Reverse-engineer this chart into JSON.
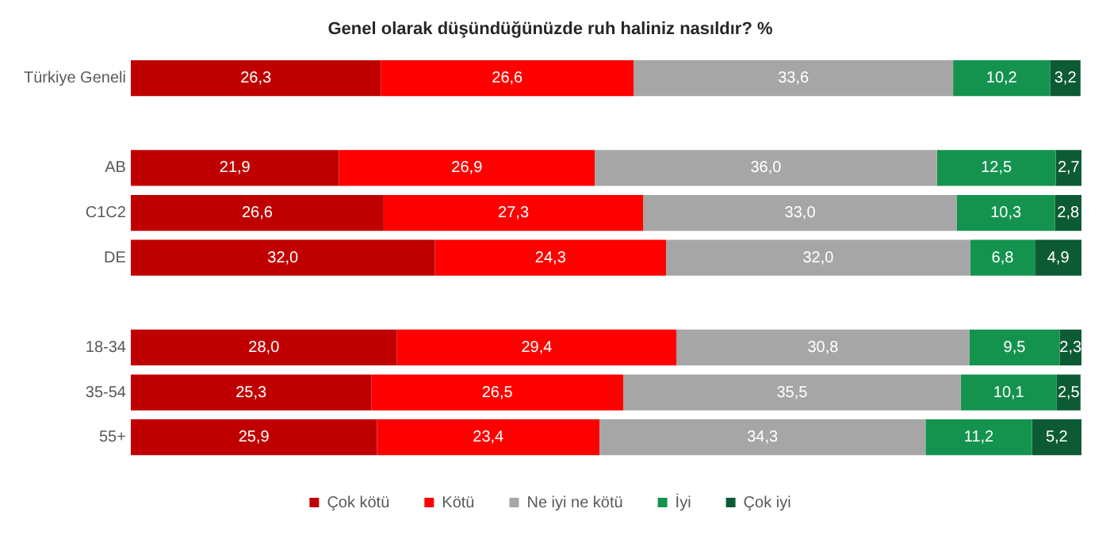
{
  "chart_data": {
    "type": "bar",
    "orientation": "horizontal",
    "stacked": true,
    "title": "Genel olarak düşündüğünüzde ruh haliniz nasıldır? %",
    "categories": [
      "Türkiye Geneli",
      null,
      "AB",
      "C1C2",
      "DE",
      null,
      "18-34",
      "35-54",
      "55+"
    ],
    "series": [
      {
        "name": "Çok kötü",
        "color": "#c00000",
        "values": [
          26.3,
          null,
          21.9,
          26.6,
          32.0,
          null,
          28.0,
          25.3,
          25.9
        ],
        "value_labels": [
          "26,3",
          null,
          "21,9",
          "26,6",
          "32,0",
          null,
          "28,0",
          "25,3",
          "25,9"
        ]
      },
      {
        "name": "Kötü",
        "color": "#ff0000",
        "values": [
          26.6,
          null,
          26.9,
          27.3,
          24.3,
          null,
          29.4,
          26.5,
          23.4
        ],
        "value_labels": [
          "26,6",
          null,
          "26,9",
          "27,3",
          "24,3",
          null,
          "29,4",
          "26,5",
          "23,4"
        ]
      },
      {
        "name": "Ne iyi ne kötü",
        "color": "#a6a6a6",
        "values": [
          33.6,
          null,
          36.0,
          33.0,
          32.0,
          null,
          30.8,
          35.5,
          34.3
        ],
        "value_labels": [
          "33,6",
          null,
          "36,0",
          "33,0",
          "32,0",
          null,
          "30,8",
          "35,5",
          "34,3"
        ]
      },
      {
        "name": "İyi",
        "color": "#14934f",
        "values": [
          10.2,
          null,
          12.5,
          10.3,
          6.8,
          null,
          9.5,
          10.1,
          11.2
        ],
        "value_labels": [
          "10,2",
          null,
          "12,5",
          "10,3",
          "6,8",
          null,
          "9,5",
          "10,1",
          "11,2"
        ]
      },
      {
        "name": "Çok iyi",
        "color": "#0d5b35",
        "values": [
          3.2,
          null,
          2.7,
          2.8,
          4.9,
          null,
          2.3,
          2.5,
          5.2
        ],
        "value_labels": [
          "3,2",
          null,
          "2,7",
          "2,8",
          "4,9",
          null,
          "2,3",
          "2,5",
          "5,2"
        ]
      }
    ],
    "xlim": [
      0,
      100
    ],
    "tick_labels": "y",
    "grid": false,
    "legend": "bottom"
  }
}
